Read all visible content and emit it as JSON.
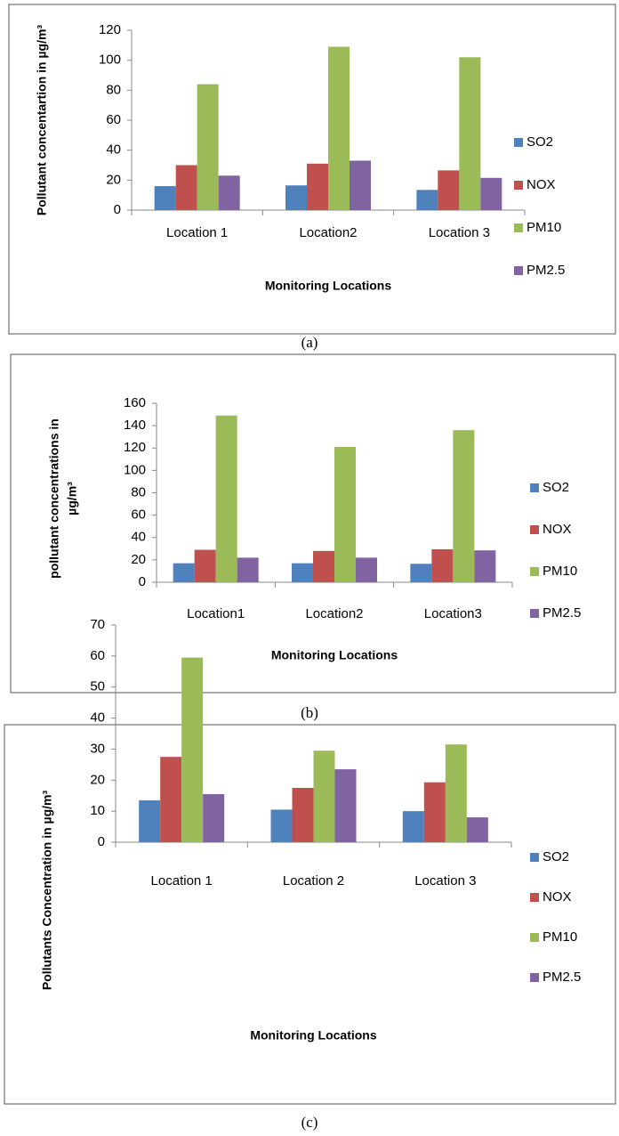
{
  "chart_data": [
    {
      "type": "bar",
      "caption": "(a)",
      "x_label": "Monitoring Locations",
      "y_label": [
        "Pollutant concentartion in µg/m³"
      ],
      "categories": [
        "Location 1",
        "Location2",
        "Location 3"
      ],
      "series": [
        {
          "name": "SO2",
          "color": "#4f81bd",
          "values": [
            16,
            16.5,
            13.5
          ]
        },
        {
          "name": "NOX",
          "color": "#c0504d",
          "values": [
            30,
            31,
            26.5
          ]
        },
        {
          "name": "PM10",
          "color": "#9bbb59",
          "values": [
            84,
            109,
            102
          ]
        },
        {
          "name": "PM2.5",
          "color": "#8064a2",
          "values": [
            23,
            33,
            21.5
          ]
        }
      ],
      "ylim": [
        0,
        120
      ],
      "yticks": [
        0,
        20,
        40,
        60,
        80,
        100,
        120
      ],
      "grid": false,
      "legend": "right"
    },
    {
      "type": "bar",
      "caption": "(b)",
      "x_label": "Monitoring Locations",
      "y_label": [
        "pollutant concentrations in",
        "µg/m³"
      ],
      "categories": [
        "Location1",
        "Location2",
        "Location3"
      ],
      "series": [
        {
          "name": "SO2",
          "color": "#4f81bd",
          "values": [
            17,
            17,
            16.5
          ]
        },
        {
          "name": "NOX",
          "color": "#c0504d",
          "values": [
            29,
            28,
            29.5
          ]
        },
        {
          "name": "PM10",
          "color": "#9bbb59",
          "values": [
            149,
            121,
            136
          ]
        },
        {
          "name": "PM2.5",
          "color": "#8064a2",
          "values": [
            22,
            22,
            28.5
          ]
        }
      ],
      "ylim": [
        0,
        160
      ],
      "yticks": [
        0,
        20,
        40,
        60,
        80,
        100,
        120,
        140,
        160
      ],
      "grid": false,
      "legend": "right"
    },
    {
      "type": "bar",
      "caption": "(c)",
      "x_label": "Monitoring Locations",
      "y_label": [
        "Pollutants Concentration in µg/m³"
      ],
      "categories": [
        "Location 1",
        "Location 2",
        "Location 3"
      ],
      "series": [
        {
          "name": "SO2",
          "color": "#4f81bd",
          "values": [
            13.5,
            10.5,
            10
          ]
        },
        {
          "name": "NOX",
          "color": "#c0504d",
          "values": [
            27.5,
            17.5,
            19.3
          ]
        },
        {
          "name": "PM10",
          "color": "#9bbb59",
          "values": [
            59.5,
            29.5,
            31.5
          ]
        },
        {
          "name": "PM2.5",
          "color": "#8064a2",
          "values": [
            15.5,
            23.5,
            8
          ]
        }
      ],
      "ylim": [
        0,
        70
      ],
      "yticks": [
        0,
        10,
        20,
        30,
        40,
        50,
        60,
        70
      ],
      "grid": false,
      "legend": "right"
    }
  ]
}
